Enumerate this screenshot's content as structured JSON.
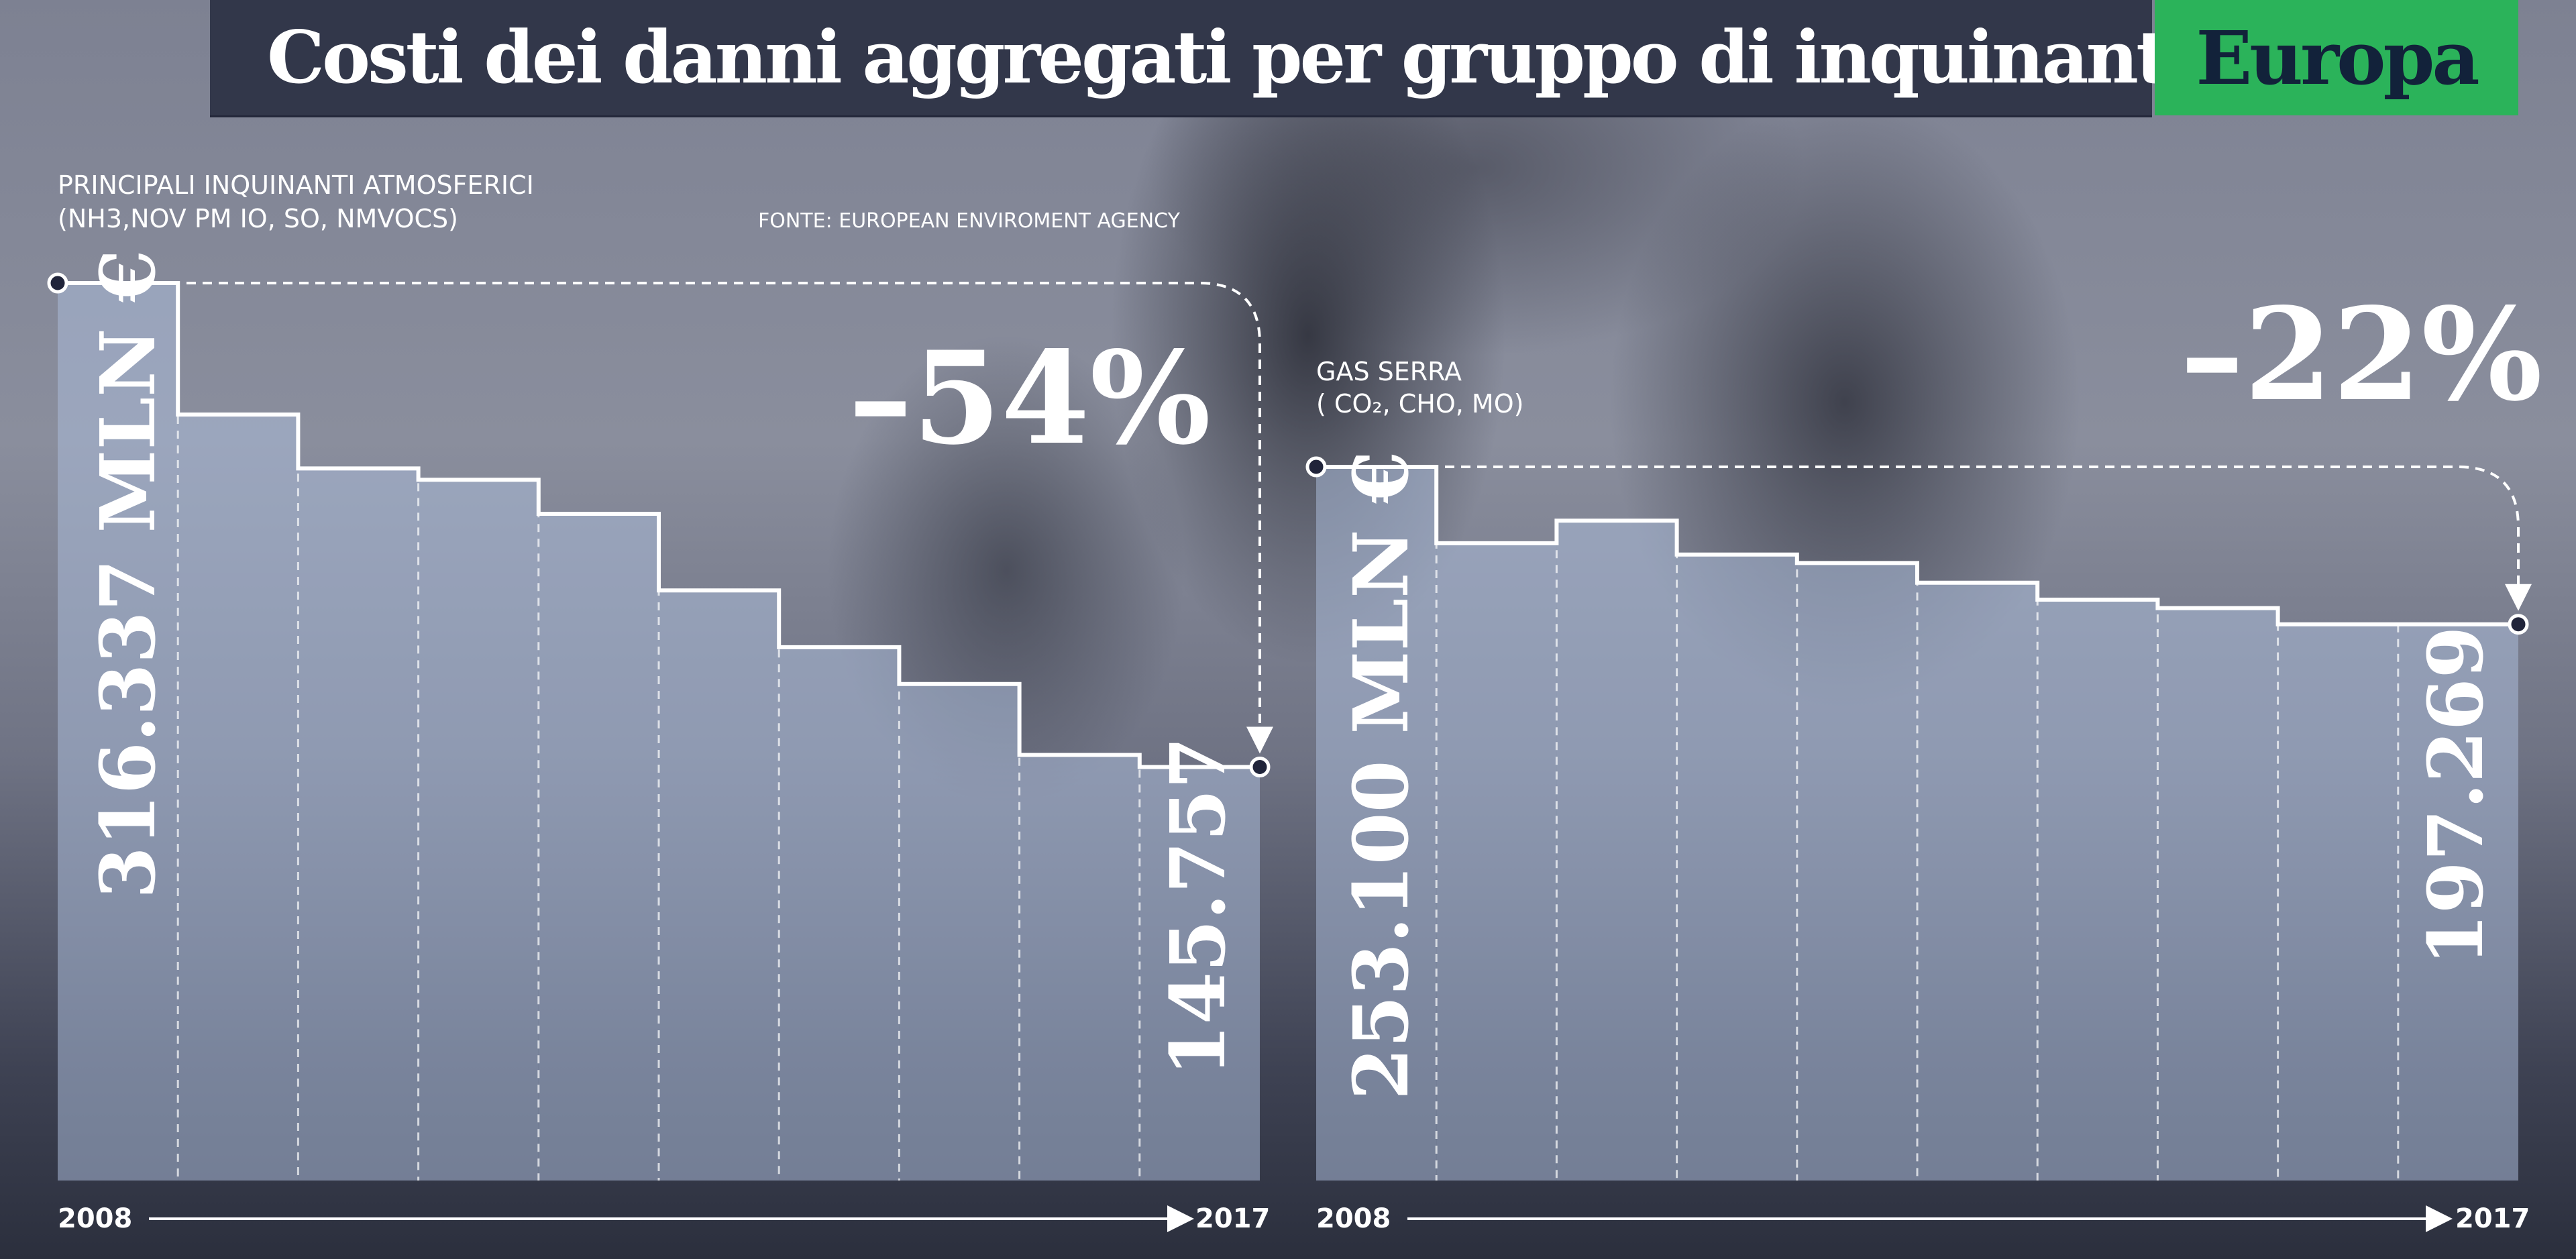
{
  "title": "Costi dei danni aggregati per gruppo di inquinanti",
  "region": "Europa",
  "source": "FONTE: EUROPEAN ENVIROMENT AGENCY",
  "chart_data": [
    {
      "type": "step-area",
      "label_line1": "PRINCIPALI INQUINANTI ATMOSFERICI",
      "label_line2": "(NH3,NOV PM IO, SO, NMVOCS)",
      "x_start": "2008",
      "x_end": "2017",
      "start_label": "316.337 MLN €",
      "end_label": "145.757",
      "change_label": "–54%",
      "values": [
        316337,
        270000,
        251000,
        247000,
        235000,
        208000,
        188000,
        175000,
        150000,
        145757
      ]
    },
    {
      "type": "step-area",
      "label_line1": "GAS SERRA",
      "label_line2": "( CO₂, CHO, MO)",
      "x_start": "2008",
      "x_end": "2017",
      "start_label": "253.100 MLN €",
      "end_label": "197.269",
      "change_label": "–22%",
      "values": [
        253100,
        226000,
        234000,
        222000,
        219000,
        212000,
        206000,
        203000,
        197269,
        197269
      ]
    }
  ]
}
